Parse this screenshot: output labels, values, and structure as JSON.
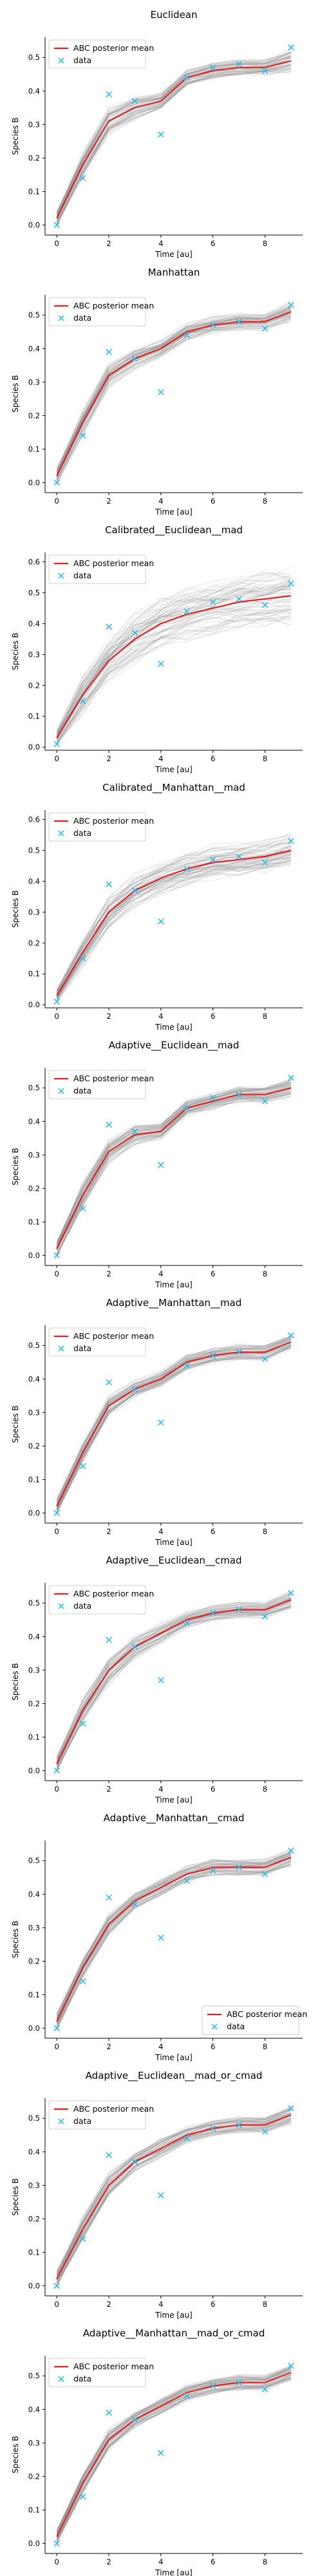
{
  "figure": {
    "background": "#ffffff"
  },
  "colors": {
    "mean": "#dd2222",
    "data": "#22bbee",
    "band": "#8c8c8c"
  },
  "legend_labels": {
    "mean": "ABC posterior mean",
    "data": "data"
  },
  "chart_data": [
    {
      "type": "line",
      "title": "Euclidean",
      "xlabel": "Time [au]",
      "ylabel": "Species B",
      "xlim": [
        -0.45,
        9.45
      ],
      "ylim": [
        -0.03,
        0.56
      ],
      "xticks": [
        0,
        2,
        4,
        6,
        8
      ],
      "yticks": [
        0.0,
        0.1,
        0.2,
        0.3,
        0.4,
        0.5
      ],
      "legend": "top-left",
      "grid": false,
      "x": [
        0,
        1,
        2,
        3,
        4,
        5,
        6,
        7,
        8,
        9
      ],
      "series": [
        {
          "name": "ABC posterior mean",
          "style": "line",
          "y": [
            0.02,
            0.18,
            0.31,
            0.35,
            0.37,
            0.44,
            0.46,
            0.47,
            0.47,
            0.49
          ],
          "spread": [
            0.02,
            0.03,
            0.035,
            0.03,
            0.02,
            0.02,
            0.02,
            0.02,
            0.02,
            0.03
          ]
        },
        {
          "name": "data",
          "style": "marker",
          "y": [
            0.0,
            0.14,
            0.39,
            0.37,
            0.27,
            0.44,
            0.47,
            0.48,
            0.46,
            0.53
          ]
        }
      ]
    },
    {
      "type": "line",
      "title": "Manhattan",
      "xlabel": "Time [au]",
      "ylabel": "Species B",
      "xlim": [
        -0.45,
        9.45
      ],
      "ylim": [
        -0.03,
        0.56
      ],
      "xticks": [
        0,
        2,
        4,
        6,
        8
      ],
      "yticks": [
        0.0,
        0.1,
        0.2,
        0.3,
        0.4,
        0.5
      ],
      "legend": "top-left",
      "grid": false,
      "x": [
        0,
        1,
        2,
        3,
        4,
        5,
        6,
        7,
        8,
        9
      ],
      "series": [
        {
          "name": "ABC posterior mean",
          "style": "line",
          "y": [
            0.02,
            0.18,
            0.32,
            0.37,
            0.4,
            0.45,
            0.47,
            0.48,
            0.48,
            0.51
          ],
          "spread": [
            0.02,
            0.03,
            0.03,
            0.025,
            0.02,
            0.02,
            0.02,
            0.02,
            0.02,
            0.025
          ]
        },
        {
          "name": "data",
          "style": "marker",
          "y": [
            0.0,
            0.14,
            0.39,
            0.37,
            0.27,
            0.44,
            0.47,
            0.48,
            0.46,
            0.53
          ]
        }
      ]
    },
    {
      "type": "line",
      "title": "Calibrated__Euclidean__mad",
      "xlabel": "Time [au]",
      "ylabel": "Species B",
      "xlim": [
        -0.45,
        9.45
      ],
      "ylim": [
        -0.01,
        0.63
      ],
      "xticks": [
        0,
        2,
        4,
        6,
        8
      ],
      "yticks": [
        0.0,
        0.1,
        0.2,
        0.3,
        0.4,
        0.5,
        0.6
      ],
      "legend": "top-left",
      "grid": false,
      "x": [
        0,
        1,
        2,
        3,
        4,
        5,
        6,
        7,
        8,
        9
      ],
      "series": [
        {
          "name": "ABC posterior mean",
          "style": "line",
          "y": [
            0.03,
            0.17,
            0.28,
            0.35,
            0.4,
            0.43,
            0.45,
            0.47,
            0.48,
            0.49
          ],
          "spread": [
            0.02,
            0.05,
            0.06,
            0.07,
            0.07,
            0.07,
            0.07,
            0.07,
            0.07,
            0.08
          ]
        },
        {
          "name": "data",
          "style": "marker",
          "y": [
            0.01,
            0.15,
            0.39,
            0.37,
            0.27,
            0.44,
            0.47,
            0.48,
            0.46,
            0.53
          ]
        }
      ]
    },
    {
      "type": "line",
      "title": "Calibrated__Manhattan__mad",
      "xlabel": "Time [au]",
      "ylabel": "Species B",
      "xlim": [
        -0.45,
        9.45
      ],
      "ylim": [
        -0.01,
        0.63
      ],
      "xticks": [
        0,
        2,
        4,
        6,
        8
      ],
      "yticks": [
        0.0,
        0.1,
        0.2,
        0.3,
        0.4,
        0.5,
        0.6
      ],
      "legend": "top-left",
      "grid": false,
      "x": [
        0,
        1,
        2,
        3,
        4,
        5,
        6,
        7,
        8,
        9
      ],
      "series": [
        {
          "name": "ABC posterior mean",
          "style": "line",
          "y": [
            0.03,
            0.17,
            0.3,
            0.37,
            0.41,
            0.44,
            0.46,
            0.47,
            0.48,
            0.5
          ],
          "spread": [
            0.02,
            0.04,
            0.05,
            0.05,
            0.05,
            0.05,
            0.05,
            0.05,
            0.05,
            0.05
          ]
        },
        {
          "name": "data",
          "style": "marker",
          "y": [
            0.01,
            0.15,
            0.39,
            0.37,
            0.27,
            0.44,
            0.47,
            0.48,
            0.46,
            0.53
          ]
        }
      ]
    },
    {
      "type": "line",
      "title": "Adaptive__Euclidean__mad",
      "xlabel": "Time [au]",
      "ylabel": "Species B",
      "xlim": [
        -0.45,
        9.45
      ],
      "ylim": [
        -0.03,
        0.56
      ],
      "xticks": [
        0,
        2,
        4,
        6,
        8
      ],
      "yticks": [
        0.0,
        0.1,
        0.2,
        0.3,
        0.4,
        0.5
      ],
      "legend": "top-left",
      "grid": false,
      "x": [
        0,
        1,
        2,
        3,
        4,
        5,
        6,
        7,
        8,
        9
      ],
      "series": [
        {
          "name": "ABC posterior mean",
          "style": "line",
          "y": [
            0.02,
            0.18,
            0.31,
            0.36,
            0.37,
            0.44,
            0.46,
            0.48,
            0.48,
            0.5
          ],
          "spread": [
            0.02,
            0.03,
            0.03,
            0.025,
            0.02,
            0.02,
            0.02,
            0.02,
            0.02,
            0.025
          ]
        },
        {
          "name": "data",
          "style": "marker",
          "y": [
            0.0,
            0.14,
            0.39,
            0.37,
            0.27,
            0.44,
            0.47,
            0.48,
            0.46,
            0.53
          ]
        }
      ]
    },
    {
      "type": "line",
      "title": "Adaptive__Manhattan__mad",
      "xlabel": "Time [au]",
      "ylabel": "Species B",
      "xlim": [
        -0.45,
        9.45
      ],
      "ylim": [
        -0.03,
        0.56
      ],
      "xticks": [
        0,
        2,
        4,
        6,
        8
      ],
      "yticks": [
        0.0,
        0.1,
        0.2,
        0.3,
        0.4,
        0.5
      ],
      "legend": "top-left",
      "grid": false,
      "x": [
        0,
        1,
        2,
        3,
        4,
        5,
        6,
        7,
        8,
        9
      ],
      "series": [
        {
          "name": "ABC posterior mean",
          "style": "line",
          "y": [
            0.02,
            0.18,
            0.32,
            0.37,
            0.4,
            0.45,
            0.47,
            0.48,
            0.48,
            0.51
          ],
          "spread": [
            0.02,
            0.025,
            0.025,
            0.02,
            0.02,
            0.02,
            0.02,
            0.02,
            0.02,
            0.02
          ]
        },
        {
          "name": "data",
          "style": "marker",
          "y": [
            0.0,
            0.14,
            0.39,
            0.37,
            0.27,
            0.44,
            0.47,
            0.48,
            0.46,
            0.53
          ]
        }
      ]
    },
    {
      "type": "line",
      "title": "Adaptive__Euclidean__cmad",
      "xlabel": "Time [au]",
      "ylabel": "Species B",
      "xlim": [
        -0.45,
        9.45
      ],
      "ylim": [
        -0.03,
        0.56
      ],
      "xticks": [
        0,
        2,
        4,
        6,
        8
      ],
      "yticks": [
        0.0,
        0.1,
        0.2,
        0.3,
        0.4,
        0.5
      ],
      "legend": "top-left",
      "grid": false,
      "x": [
        0,
        1,
        2,
        3,
        4,
        5,
        6,
        7,
        8,
        9
      ],
      "series": [
        {
          "name": "ABC posterior mean",
          "style": "line",
          "y": [
            0.02,
            0.18,
            0.3,
            0.37,
            0.41,
            0.45,
            0.47,
            0.48,
            0.48,
            0.51
          ],
          "spread": [
            0.02,
            0.03,
            0.035,
            0.03,
            0.025,
            0.02,
            0.02,
            0.02,
            0.02,
            0.025
          ]
        },
        {
          "name": "data",
          "style": "marker",
          "y": [
            0.0,
            0.14,
            0.39,
            0.37,
            0.27,
            0.44,
            0.47,
            0.48,
            0.46,
            0.53
          ]
        }
      ]
    },
    {
      "type": "line",
      "title": "Adaptive__Manhattan__cmad",
      "xlabel": "Time [au]",
      "ylabel": "Species B",
      "xlim": [
        -0.45,
        9.45
      ],
      "ylim": [
        -0.03,
        0.56
      ],
      "xticks": [
        0,
        2,
        4,
        6,
        8
      ],
      "yticks": [
        0.0,
        0.1,
        0.2,
        0.3,
        0.4,
        0.5
      ],
      "legend": "bottom-right",
      "grid": false,
      "x": [
        0,
        1,
        2,
        3,
        4,
        5,
        6,
        7,
        8,
        9
      ],
      "series": [
        {
          "name": "ABC posterior mean",
          "style": "line",
          "y": [
            0.02,
            0.18,
            0.31,
            0.38,
            0.42,
            0.46,
            0.48,
            0.48,
            0.48,
            0.51
          ],
          "spread": [
            0.02,
            0.025,
            0.025,
            0.02,
            0.02,
            0.02,
            0.02,
            0.02,
            0.02,
            0.02
          ]
        },
        {
          "name": "data",
          "style": "marker",
          "y": [
            0.0,
            0.14,
            0.39,
            0.37,
            0.27,
            0.44,
            0.47,
            0.48,
            0.46,
            0.53
          ]
        }
      ]
    },
    {
      "type": "line",
      "title": "Adaptive__Euclidean__mad_or_cmad",
      "xlabel": "Time [au]",
      "ylabel": "Species B",
      "xlim": [
        -0.45,
        9.45
      ],
      "ylim": [
        -0.03,
        0.56
      ],
      "xticks": [
        0,
        2,
        4,
        6,
        8
      ],
      "yticks": [
        0.0,
        0.1,
        0.2,
        0.3,
        0.4,
        0.5
      ],
      "legend": "top-left",
      "grid": false,
      "x": [
        0,
        1,
        2,
        3,
        4,
        5,
        6,
        7,
        8,
        9
      ],
      "series": [
        {
          "name": "ABC posterior mean",
          "style": "line",
          "y": [
            0.02,
            0.17,
            0.3,
            0.37,
            0.41,
            0.45,
            0.47,
            0.48,
            0.48,
            0.51
          ],
          "spread": [
            0.02,
            0.03,
            0.03,
            0.025,
            0.025,
            0.02,
            0.02,
            0.02,
            0.02,
            0.025
          ]
        },
        {
          "name": "data",
          "style": "marker",
          "y": [
            0.0,
            0.14,
            0.39,
            0.37,
            0.27,
            0.44,
            0.47,
            0.48,
            0.46,
            0.53
          ]
        }
      ]
    },
    {
      "type": "line",
      "title": "Adaptive__Manhattan__mad_or_cmad",
      "xlabel": "Time [au]",
      "ylabel": "Species B",
      "xlim": [
        -0.45,
        9.45
      ],
      "ylim": [
        -0.03,
        0.56
      ],
      "xticks": [
        0,
        2,
        4,
        6,
        8
      ],
      "yticks": [
        0.0,
        0.1,
        0.2,
        0.3,
        0.4,
        0.5
      ],
      "legend": "top-left",
      "grid": false,
      "x": [
        0,
        1,
        2,
        3,
        4,
        5,
        6,
        7,
        8,
        9
      ],
      "series": [
        {
          "name": "ABC posterior mean",
          "style": "line",
          "y": [
            0.02,
            0.18,
            0.31,
            0.37,
            0.41,
            0.45,
            0.47,
            0.48,
            0.48,
            0.51
          ],
          "spread": [
            0.02,
            0.025,
            0.025,
            0.02,
            0.02,
            0.02,
            0.02,
            0.02,
            0.02,
            0.02
          ]
        },
        {
          "name": "data",
          "style": "marker",
          "y": [
            0.0,
            0.14,
            0.39,
            0.37,
            0.27,
            0.44,
            0.47,
            0.48,
            0.46,
            0.53
          ]
        }
      ]
    }
  ]
}
